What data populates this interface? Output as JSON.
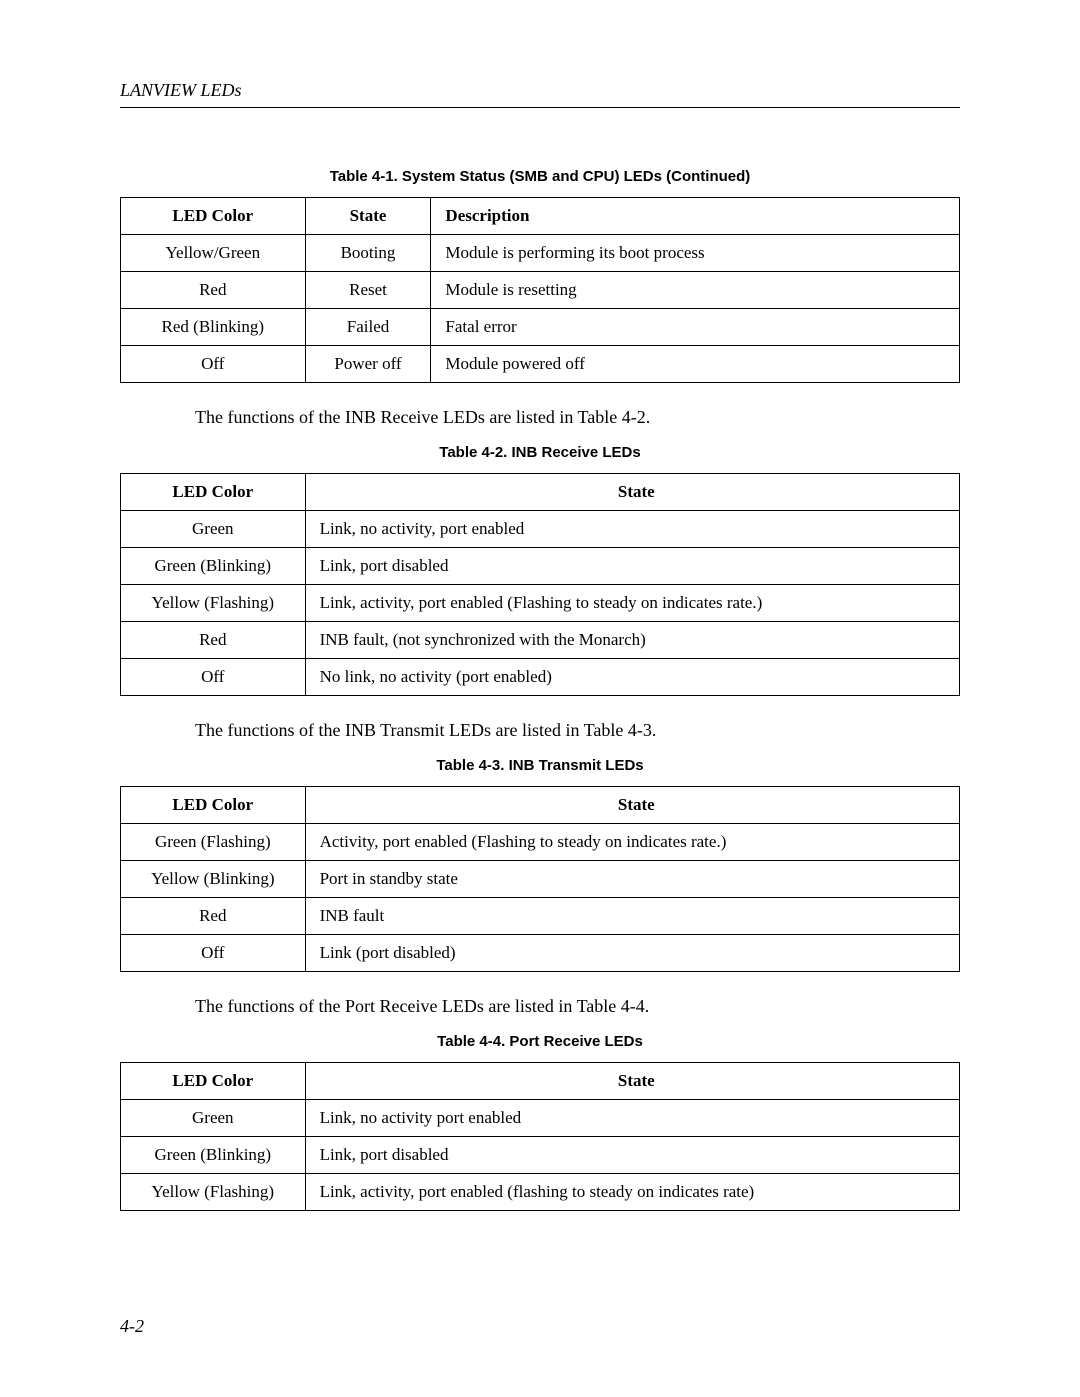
{
  "header": {
    "title": "LANVIEW LEDs"
  },
  "table1": {
    "caption": "Table 4-1.  System Status (SMB and CPU) LEDs (Continued)",
    "headers": [
      "LED Color",
      "State",
      "Description"
    ],
    "rows": [
      [
        "Yellow/Green",
        "Booting",
        "Module is performing its boot process"
      ],
      [
        "Red",
        "Reset",
        "Module is resetting"
      ],
      [
        "Red (Blinking)",
        "Failed",
        "Fatal error"
      ],
      [
        "Off",
        "Power off",
        "Module powered off"
      ]
    ]
  },
  "intro2": "The functions of the INB Receive LEDs are listed in Table 4-2.",
  "table2": {
    "caption": "Table 4-2.  INB Receive LEDs",
    "headers": [
      "LED Color",
      "State"
    ],
    "rows": [
      [
        "Green",
        "Link, no activity, port enabled"
      ],
      [
        "Green (Blinking)",
        "Link, port disabled"
      ],
      [
        "Yellow (Flashing)",
        "Link, activity, port enabled (Flashing to steady on indicates rate.)"
      ],
      [
        "Red",
        "INB fault, (not synchronized with the Monarch)"
      ],
      [
        "Off",
        "No link, no activity (port enabled)"
      ]
    ]
  },
  "intro3": "The functions of the INB Transmit LEDs are listed in Table 4-3.",
  "table3": {
    "caption": "Table 4-3.  INB Transmit LEDs",
    "headers": [
      "LED Color",
      "State"
    ],
    "rows": [
      [
        "Green (Flashing)",
        "Activity, port enabled (Flashing to steady on indicates rate.)"
      ],
      [
        "Yellow (Blinking)",
        "Port in standby state"
      ],
      [
        "Red",
        "INB fault"
      ],
      [
        "Off",
        "Link (port disabled)"
      ]
    ]
  },
  "intro4": "The functions of the Port Receive LEDs are listed in Table 4-4.",
  "table4": {
    "caption": "Table 4-4.  Port Receive LEDs",
    "headers": [
      "LED Color",
      "State"
    ],
    "rows": [
      [
        "Green",
        "Link, no activity port enabled"
      ],
      [
        "Green (Blinking)",
        "Link, port disabled"
      ],
      [
        "Yellow (Flashing)",
        "Link, activity, port enabled (flashing to steady on indicates rate)"
      ]
    ]
  },
  "pageNumber": "4-2"
}
